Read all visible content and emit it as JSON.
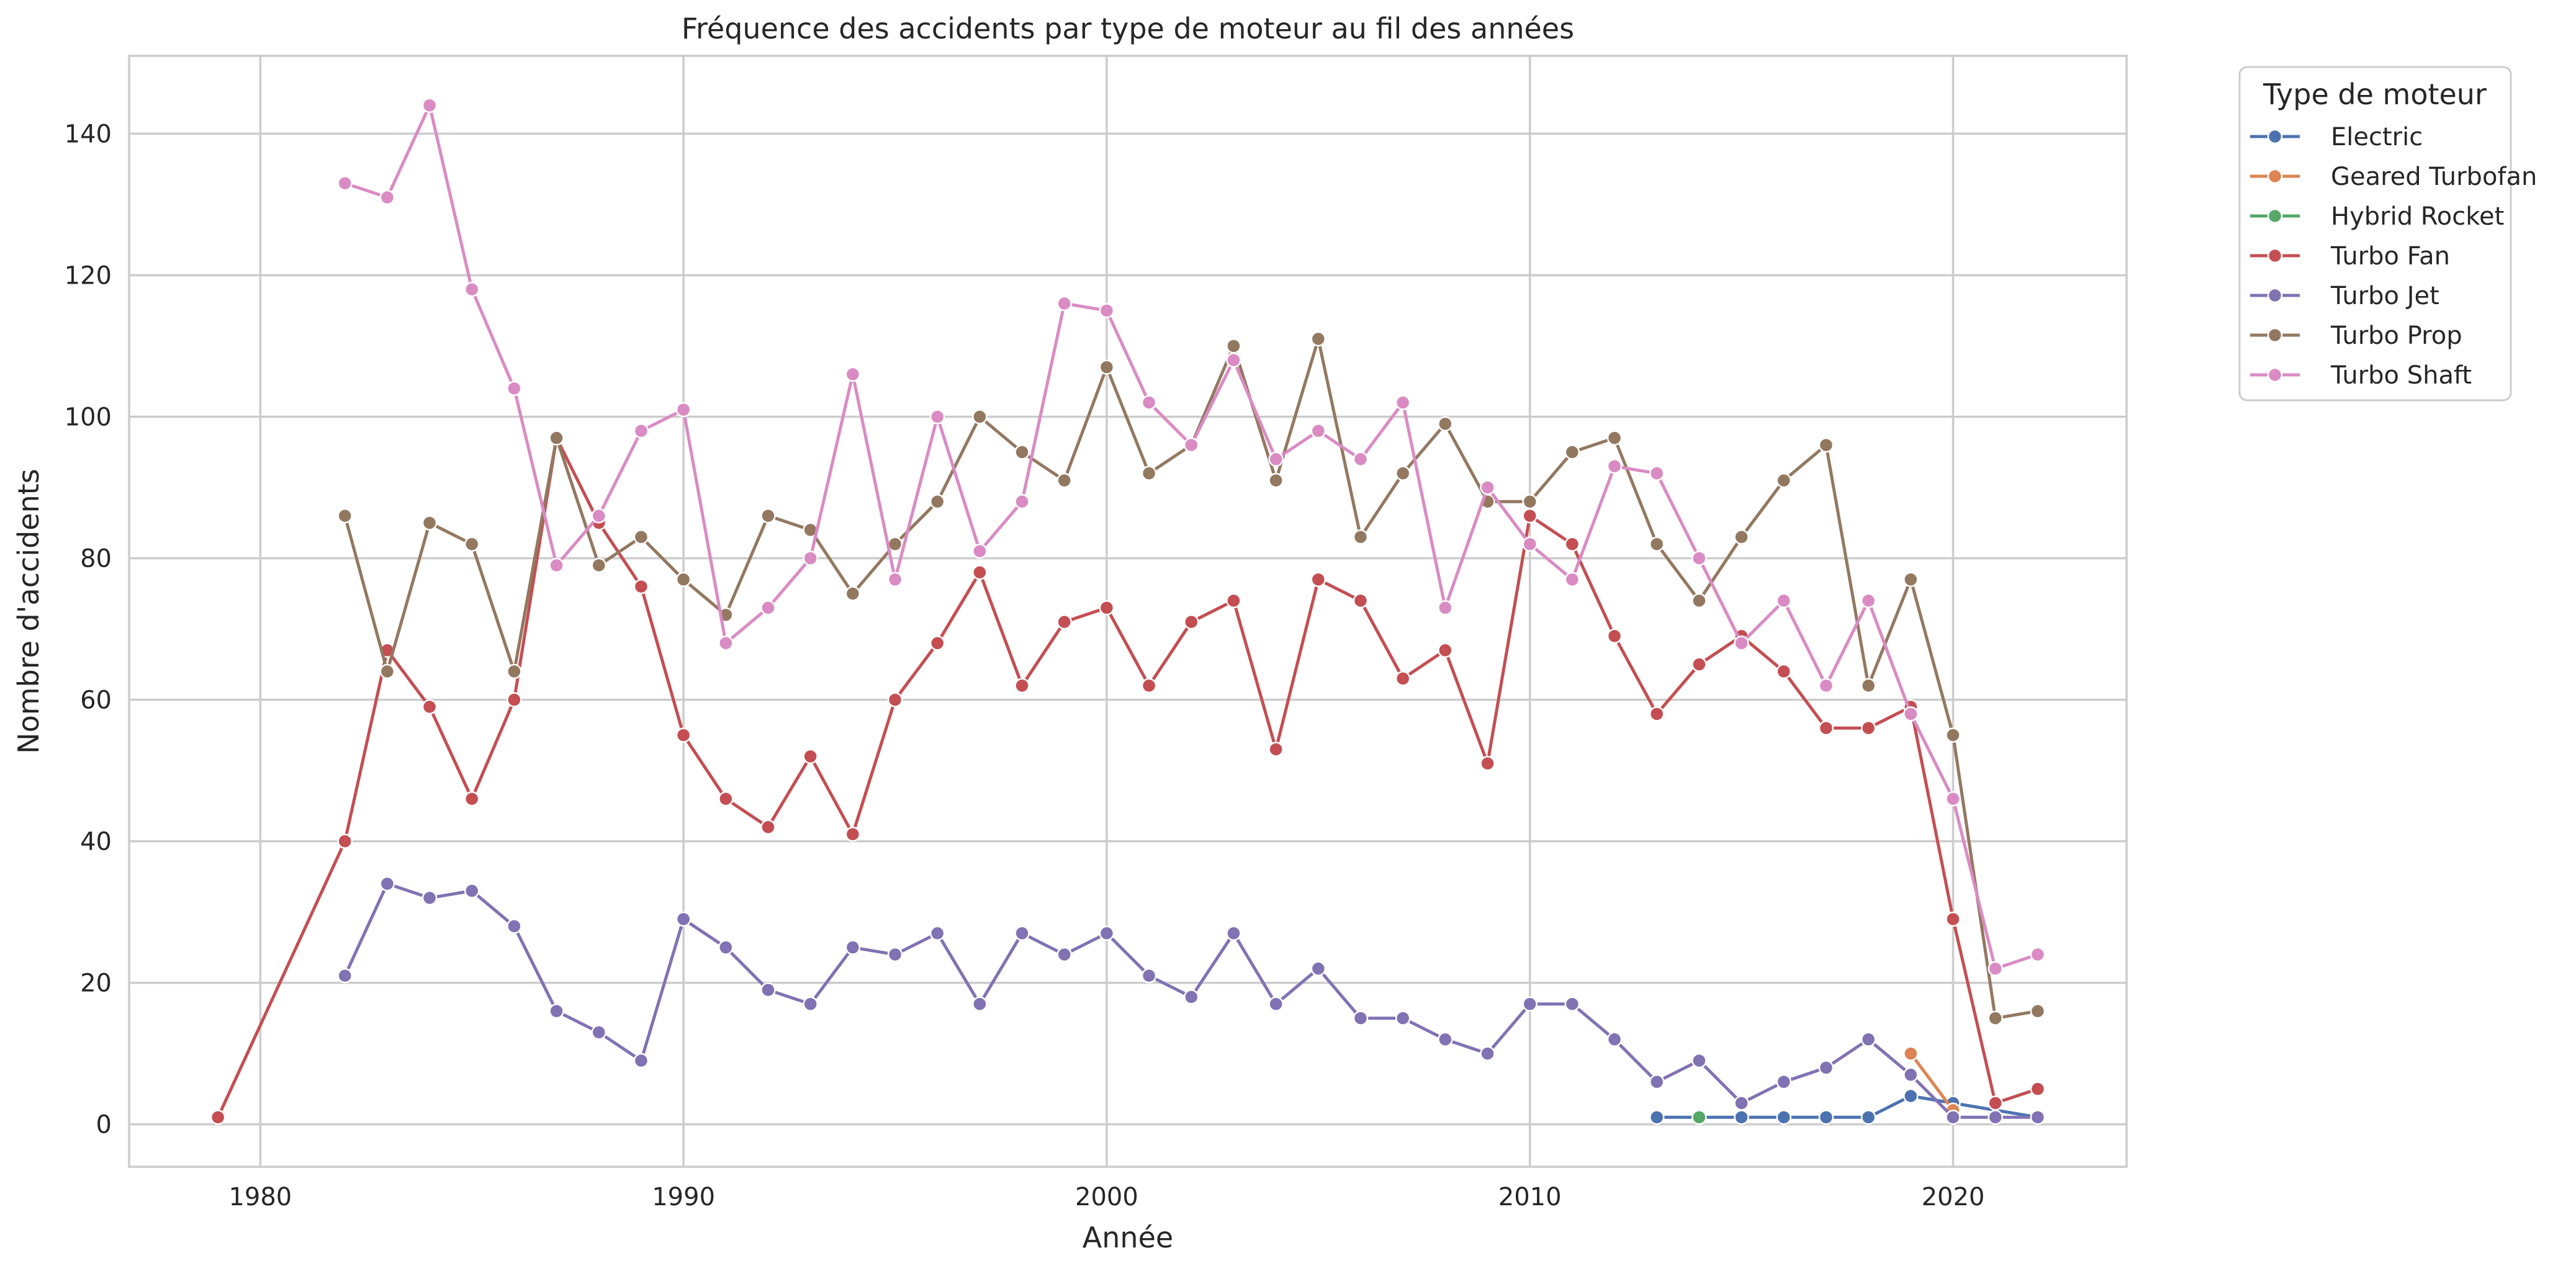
{
  "chart_data": {
    "type": "line",
    "title": "Fréquence des accidents par type de moteur au fil des années",
    "xlabel": "Année",
    "ylabel": "Nombre d'accidents",
    "xlim": [
      1976.9,
      2024.1
    ],
    "ylim": [
      -6,
      151
    ],
    "xticks": [
      1980,
      1990,
      2000,
      2010,
      2020
    ],
    "yticks": [
      0,
      20,
      40,
      60,
      80,
      100,
      120,
      140
    ],
    "grid": true,
    "legend": {
      "title": "Type de moteur",
      "placement": "outside-top-right"
    },
    "series": [
      {
        "name": "Electric",
        "color": "#4c72b0",
        "x": [
          2013,
          2014,
          2015,
          2016,
          2017,
          2018,
          2019,
          2020,
          2022
        ],
        "y": [
          1,
          1,
          1,
          1,
          1,
          1,
          4,
          3,
          1
        ]
      },
      {
        "name": "Geared Turbofan",
        "color": "#dd8452",
        "x": [
          2019,
          2020
        ],
        "y": [
          10,
          2
        ]
      },
      {
        "name": "Hybrid Rocket",
        "color": "#55a868",
        "x": [
          2014
        ],
        "y": [
          1
        ]
      },
      {
        "name": "Turbo Fan",
        "color": "#c44e52",
        "x": [
          1979,
          1982,
          1983,
          1984,
          1985,
          1986,
          1987,
          1988,
          1989,
          1990,
          1991,
          1992,
          1993,
          1994,
          1995,
          1996,
          1997,
          1998,
          1999,
          2000,
          2001,
          2002,
          2003,
          2004,
          2005,
          2006,
          2007,
          2008,
          2009,
          2010,
          2011,
          2012,
          2013,
          2014,
          2015,
          2016,
          2017,
          2018,
          2019,
          2020,
          2021,
          2022
        ],
        "y": [
          1,
          40,
          67,
          59,
          46,
          60,
          97,
          85,
          76,
          55,
          46,
          42,
          52,
          41,
          60,
          68,
          78,
          62,
          71,
          73,
          62,
          71,
          74,
          53,
          77,
          74,
          63,
          67,
          51,
          86,
          82,
          69,
          58,
          65,
          69,
          64,
          56,
          56,
          59,
          29,
          3,
          5
        ]
      },
      {
        "name": "Turbo Jet",
        "color": "#8172b3",
        "x": [
          1982,
          1983,
          1984,
          1985,
          1986,
          1987,
          1988,
          1989,
          1990,
          1991,
          1992,
          1993,
          1994,
          1995,
          1996,
          1997,
          1998,
          1999,
          2000,
          2001,
          2002,
          2003,
          2004,
          2005,
          2006,
          2007,
          2008,
          2009,
          2010,
          2011,
          2012,
          2013,
          2014,
          2015,
          2016,
          2017,
          2018,
          2019,
          2020,
          2021,
          2022
        ],
        "y": [
          21,
          34,
          32,
          33,
          28,
          16,
          13,
          9,
          29,
          25,
          19,
          17,
          25,
          24,
          27,
          17,
          27,
          24,
          27,
          21,
          18,
          27,
          17,
          22,
          15,
          15,
          12,
          10,
          17,
          17,
          12,
          6,
          9,
          3,
          6,
          8,
          12,
          7,
          1,
          1,
          1
        ]
      },
      {
        "name": "Turbo Prop",
        "color": "#937860",
        "x": [
          1982,
          1983,
          1984,
          1985,
          1986,
          1987,
          1988,
          1989,
          1990,
          1991,
          1992,
          1993,
          1994,
          1995,
          1996,
          1997,
          1998,
          1999,
          2000,
          2001,
          2002,
          2003,
          2004,
          2005,
          2006,
          2007,
          2008,
          2009,
          2010,
          2011,
          2012,
          2013,
          2014,
          2015,
          2016,
          2017,
          2018,
          2019,
          2020,
          2021,
          2022
        ],
        "y": [
          86,
          64,
          85,
          82,
          64,
          97,
          79,
          83,
          77,
          72,
          86,
          84,
          75,
          82,
          88,
          100,
          95,
          91,
          107,
          92,
          96,
          110,
          91,
          111,
          83,
          92,
          99,
          88,
          88,
          95,
          97,
          82,
          74,
          83,
          91,
          96,
          62,
          77,
          55,
          15,
          16
        ]
      },
      {
        "name": "Turbo Shaft",
        "color": "#da8bc3",
        "x": [
          1982,
          1983,
          1984,
          1985,
          1986,
          1987,
          1988,
          1989,
          1990,
          1991,
          1992,
          1993,
          1994,
          1995,
          1996,
          1997,
          1998,
          1999,
          2000,
          2001,
          2002,
          2003,
          2004,
          2005,
          2006,
          2007,
          2008,
          2009,
          2010,
          2011,
          2012,
          2013,
          2014,
          2015,
          2016,
          2017,
          2018,
          2019,
          2020,
          2021,
          2022
        ],
        "y": [
          133,
          131,
          144,
          118,
          104,
          79,
          86,
          98,
          101,
          68,
          73,
          80,
          106,
          77,
          100,
          81,
          88,
          116,
          115,
          102,
          96,
          108,
          94,
          98,
          94,
          102,
          73,
          90,
          82,
          77,
          93,
          92,
          80,
          68,
          74,
          62,
          74,
          58,
          46,
          22,
          24
        ]
      }
    ]
  }
}
